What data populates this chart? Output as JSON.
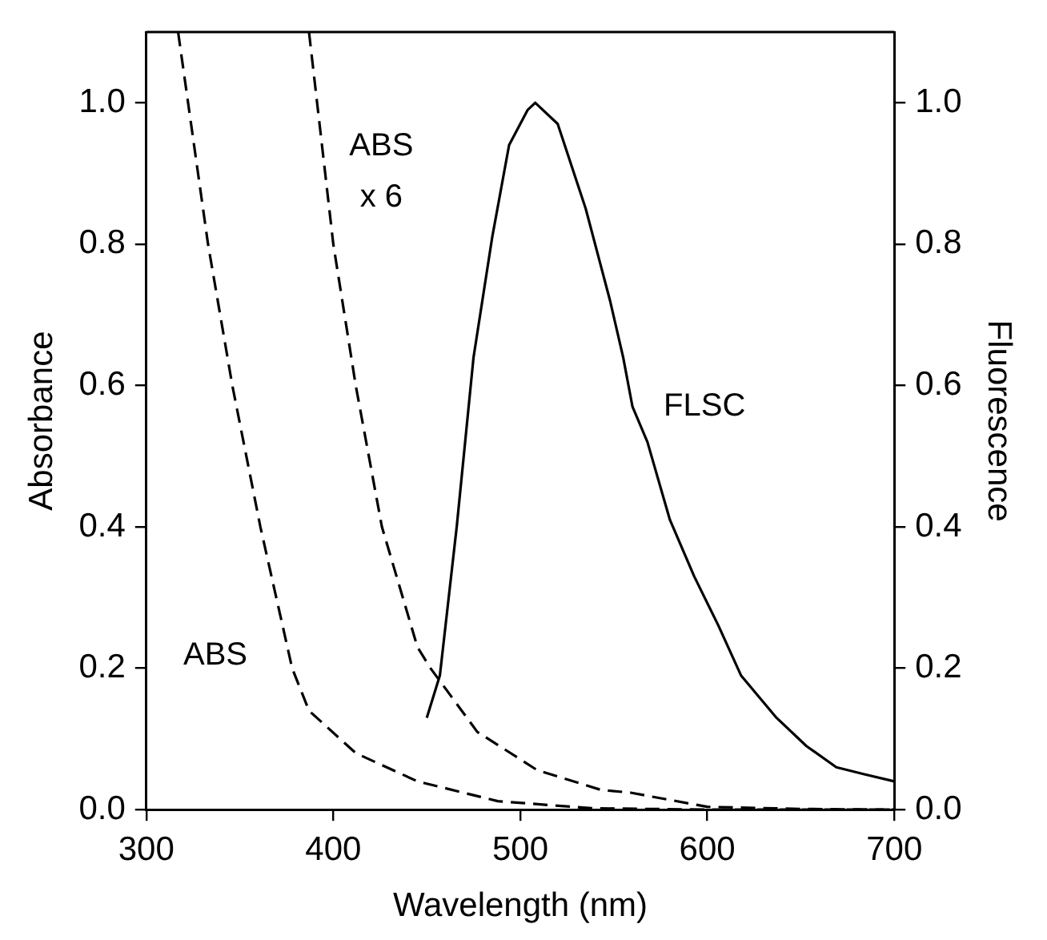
{
  "chart_data": {
    "type": "line",
    "xlabel": "Wavelength (nm)",
    "ylabel": "Absorbance",
    "y2label": "Fluorescence",
    "xlim": [
      300,
      700
    ],
    "xticks": [
      300,
      400,
      500,
      600,
      700
    ],
    "ylim": [
      0,
      1.1
    ],
    "yticks": [
      {
        "value": 0,
        "label": "0.0"
      },
      {
        "value": 0.2,
        "label": "0.2"
      },
      {
        "value": 0.4,
        "label": "0.4"
      },
      {
        "value": 0.6,
        "label": "0.6"
      },
      {
        "value": 0.8,
        "label": "0.8"
      },
      {
        "value": 1,
        "label": "1.0"
      }
    ],
    "y2lim": [
      0,
      1.1
    ],
    "y2ticks": [
      {
        "value": 0,
        "label": "0.0"
      },
      {
        "value": 0.2,
        "label": "0.2"
      },
      {
        "value": 0.4,
        "label": "0.4"
      },
      {
        "value": 0.6,
        "label": "0.6"
      },
      {
        "value": 0.8,
        "label": "0.8"
      },
      {
        "value": 1,
        "label": "1.0"
      }
    ],
    "grid": false,
    "legend": false,
    "marker": "none",
    "series": [
      {
        "name": "ABS",
        "color": "#000000",
        "line_style": "dashed",
        "x": [
          317,
          333,
          346,
          361,
          378,
          387,
          412,
          445,
          488,
          538,
          600,
          700
        ],
        "values": [
          1.1,
          0.8,
          0.6,
          0.4,
          0.2,
          0.14,
          0.08,
          0.04,
          0.012,
          0.002,
          0,
          0
        ]
      },
      {
        "name": "ABS x 6",
        "color": "#000000",
        "line_style": "dashed",
        "x": [
          387,
          400,
          412,
          426,
          445,
          452,
          477,
          509,
          543,
          559,
          600,
          650,
          700
        ],
        "values": [
          1.1,
          0.8,
          0.6,
          0.4,
          0.23,
          0.2,
          0.11,
          0.056,
          0.028,
          0.024,
          0.004,
          0.001,
          0
        ]
      },
      {
        "name": "FLSC",
        "color": "#000000",
        "line_style": "solid",
        "axis": "y2",
        "x": [
          450,
          457,
          466,
          475,
          485,
          494,
          504,
          508,
          520,
          535,
          543,
          548,
          555,
          560,
          568,
          580,
          593,
          606,
          618,
          637,
          653,
          669,
          684,
          700
        ],
        "values": [
          0.13,
          0.19,
          0.4,
          0.64,
          0.81,
          0.94,
          0.99,
          1,
          0.97,
          0.85,
          0.77,
          0.72,
          0.64,
          0.57,
          0.52,
          0.41,
          0.33,
          0.26,
          0.19,
          0.13,
          0.09,
          0.06,
          0.05,
          0.04
        ]
      }
    ]
  }
}
